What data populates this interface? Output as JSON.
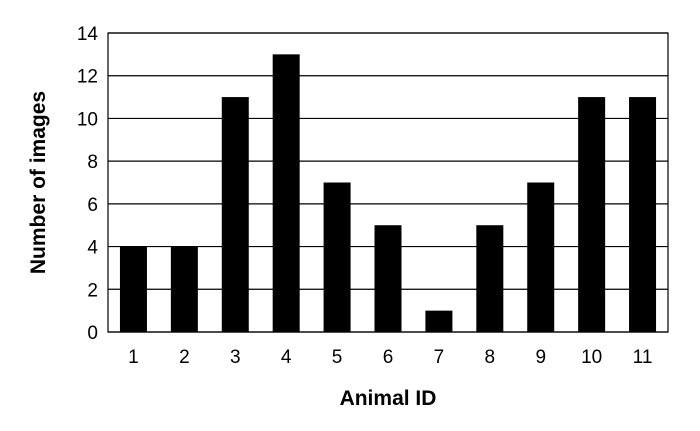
{
  "chart_data": {
    "type": "bar",
    "title": "",
    "xlabel": "Animal ID",
    "ylabel": "Number of images",
    "categories": [
      "1",
      "2",
      "3",
      "4",
      "5",
      "6",
      "7",
      "8",
      "9",
      "10",
      "11"
    ],
    "values": [
      4,
      4,
      11,
      13,
      7,
      5,
      1,
      5,
      7,
      11,
      11
    ],
    "ylim": [
      0,
      14
    ],
    "yticks": [
      "0",
      "2",
      "4",
      "6",
      "8",
      "10",
      "12",
      "14"
    ],
    "grid": "horizontal",
    "legend": "none",
    "colors": {
      "bar": "#000000",
      "grid": "#000000",
      "background": "#ffffff"
    }
  }
}
